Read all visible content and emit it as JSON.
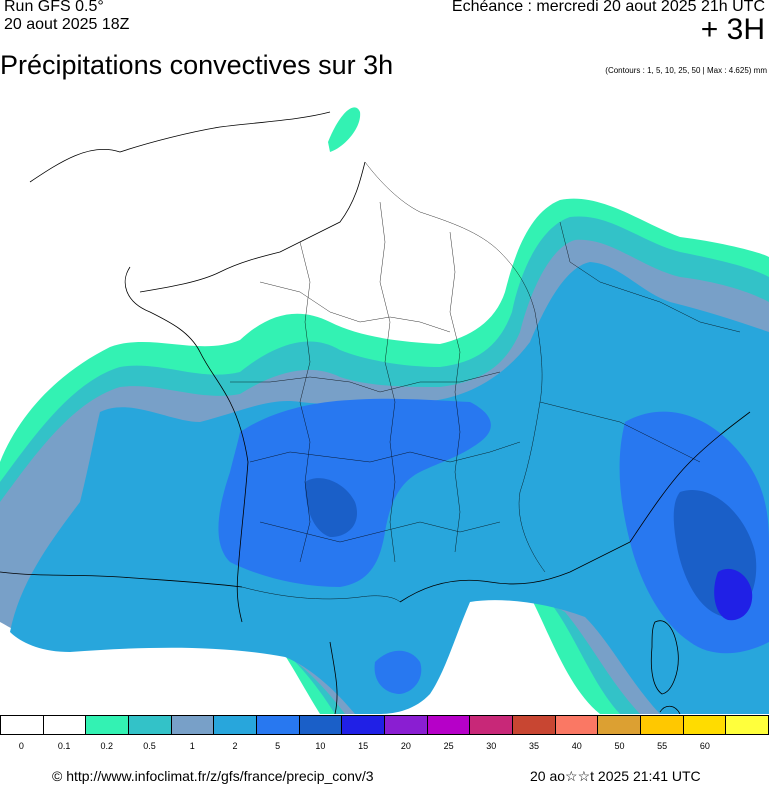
{
  "header": {
    "run_line": "Run GFS 0.5°",
    "run_date": "20 aout 2025 18Z",
    "echeance": "Echéance : mercredi 20 aout 2025 21h UTC",
    "offset": "+ 3H"
  },
  "title": "Précipitations convectives sur 3h",
  "contours_note": "(Contours : 1, 5, 10, 25, 50 | Max : 4.625) mm",
  "legend": {
    "colors": [
      "#ffffff",
      "#ffffff",
      "#33f2b3",
      "#33c2c8",
      "#78a0c8",
      "#28a6dc",
      "#2878f0",
      "#1a5fc8",
      "#2020e6",
      "#8a1ed2",
      "#b600c8",
      "#c82878",
      "#c84632",
      "#fa7864",
      "#dca032",
      "#ffc800",
      "#ffdc00",
      "#ffff3c"
    ],
    "ticks": [
      "0",
      "0.1",
      "0.2",
      "0.5",
      "1",
      "2",
      "5",
      "10",
      "15",
      "20",
      "25",
      "30",
      "35",
      "40",
      "50",
      "55",
      "60"
    ]
  },
  "footer": {
    "source": "© http://www.infoclimat.fr/z/gfs/france/precip_conv/3",
    "generated": "20 ao☆☆t 2025 21:41 UTC"
  }
}
